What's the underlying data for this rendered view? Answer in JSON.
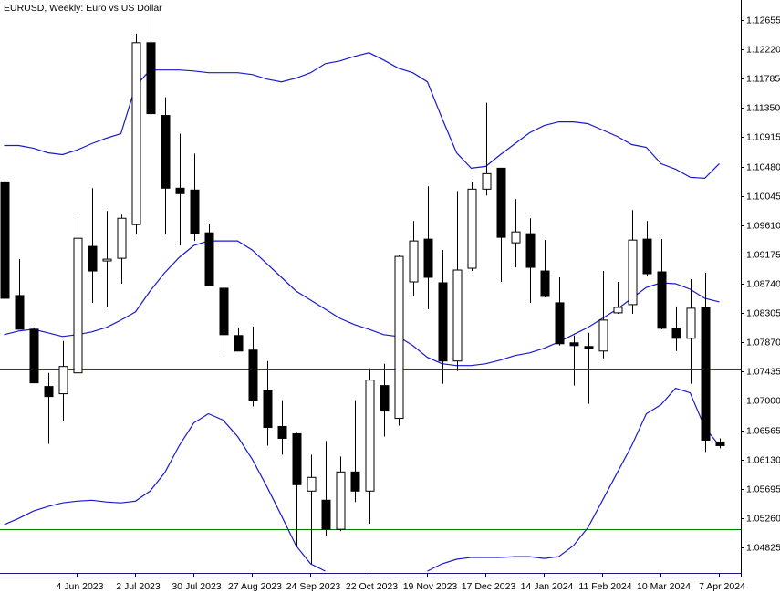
{
  "chart_data": {
    "type": "candlestick",
    "title": "EURUSD, Weekly:  Euro vs US Dollar",
    "categories": [
      null,
      null,
      null,
      null,
      null,
      "4 Jun 2023",
      null,
      null,
      null,
      "2 Jul 2023",
      null,
      null,
      null,
      "30 Jul 2023",
      null,
      null,
      null,
      "27 Aug 2023",
      null,
      null,
      null,
      "24 Sep 2023",
      null,
      null,
      null,
      "22 Oct 2023",
      null,
      null,
      null,
      "19 Nov 2023",
      null,
      null,
      null,
      "17 Dec 2023",
      null,
      null,
      null,
      "14 Jan 2024",
      null,
      null,
      null,
      "11 Feb 2024",
      null,
      null,
      null,
      "10 Mar 2024",
      null,
      null,
      null,
      "7 Apr 2024"
    ],
    "open": [
      1.10252,
      1.08565,
      1.08065,
      1.07215,
      1.07107,
      1.07417,
      1.09294,
      1.09078,
      1.09118,
      1.09618,
      1.12318,
      1.11238,
      1.10158,
      1.10131,
      1.09496,
      1.08673,
      1.07971,
      1.07755,
      1.07161,
      1.06621,
      1.06513,
      1.05662,
      1.05527,
      1.05095,
      1.05946,
      1.05662,
      1.07228,
      1.06742,
      1.08767,
      1.09402,
      1.08754,
      1.07593,
      1.0897,
      1.10144,
      1.10455,
      1.09348,
      1.09483,
      1.08929,
      1.08457,
      1.07863,
      1.07809,
      1.07741,
      1.08308,
      1.0843,
      1.09402,
      1.08916,
      1.08079,
      1.0793,
      1.08389,
      1.06391
    ],
    "high": [
      1.10252,
      1.09105,
      1.08092,
      1.07417,
      1.0789,
      1.09753,
      1.10158,
      1.0982,
      1.09766,
      1.12453,
      1.12817,
      1.11508,
      1.10968,
      1.10671,
      1.09618,
      1.08713,
      1.08092,
      1.08106,
      1.07593,
      1.07012,
      1.06526,
      1.06202,
      1.06405,
      1.06175,
      1.07012,
      1.07485,
      1.07552,
      1.09159,
      1.09672,
      1.10185,
      1.0924,
      1.10117,
      1.10252,
      1.11427,
      1.10455,
      1.09996,
      1.09712,
      1.09388,
      1.08835,
      1.07971,
      1.08011,
      1.08929,
      1.08767,
      1.09834,
      1.09672,
      1.09402,
      1.08403,
      1.08808,
      1.08902,
      1.06445
    ],
    "low": [
      1.08524,
      1.08065,
      1.07269,
      1.06364,
      1.06702,
      1.0735,
      1.08457,
      1.08389,
      1.0874,
      1.09469,
      1.11224,
      1.09469,
      1.09307,
      1.09375,
      1.08713,
      1.07687,
      1.07741,
      1.06918,
      1.06337,
      1.06202,
      1.04852,
      1.04582,
      1.04987,
      1.05068,
      1.055,
      1.05176,
      1.06472,
      1.06634,
      1.08565,
      1.08362,
      1.07255,
      1.07444,
      1.08929,
      1.1005,
      1.08767,
      1.08983,
      1.08457,
      1.08538,
      1.07822,
      1.07228,
      1.06958,
      1.07633,
      1.08294,
      1.08294,
      1.08862,
      1.08065,
      1.07741,
      1.07255,
      1.06243,
      1.06297
    ],
    "close": [
      1.08524,
      1.08065,
      1.07269,
      1.07066,
      1.07512,
      1.09415,
      1.08929,
      1.09105,
      1.09712,
      1.12318,
      1.11265,
      1.10158,
      1.10077,
      1.09483,
      1.08713,
      1.07984,
      1.07741,
      1.07012,
      1.06607,
      1.06445,
      1.05757,
      1.05865,
      1.05095,
      1.05946,
      1.05662,
      1.07309,
      1.0685,
      1.09145,
      1.09375,
      1.08835,
      1.07593,
      1.08943,
      1.10144,
      1.10374,
      1.09429,
      1.0951,
      1.08983,
      1.08551,
      1.07849,
      1.07822,
      1.07782,
      1.082,
      1.08389,
      1.09388,
      1.08889,
      1.08079,
      1.0793,
      1.08376,
      1.06418,
      1.06337
    ],
    "up_color": "#ffffff",
    "down_color": "#000000",
    "series": [
      {
        "type": "line",
        "color": "#1a1acc",
        "values": [
          1.10792,
          1.10792,
          1.10752,
          1.10684,
          1.10657,
          1.10725,
          1.10819,
          1.109,
          1.10968,
          1.1167,
          1.11913,
          1.11913,
          1.11913,
          1.11899,
          1.11872,
          1.11872,
          1.11872,
          1.11845,
          1.11778,
          1.11737,
          1.11791,
          1.11872,
          1.12007,
          1.12048,
          1.12115,
          1.12169,
          1.12061,
          1.1194,
          1.11872,
          1.11737,
          1.11197,
          1.10684,
          1.10455,
          1.10482,
          1.10657,
          1.10819,
          1.10981,
          1.11089,
          1.11143,
          1.11143,
          1.11116,
          1.11022,
          1.10927,
          1.10806,
          1.10765,
          1.10522,
          1.10441,
          1.1032,
          1.10306,
          1.10522
        ]
      },
      {
        "type": "line",
        "color": "#1a1acc",
        "values": [
          1.07984,
          1.08038,
          1.08065,
          1.08011,
          1.07957,
          1.07984,
          1.08025,
          1.08092,
          1.082,
          1.08322,
          1.08632,
          1.08902,
          1.09132,
          1.09307,
          1.09375,
          1.09375,
          1.09375,
          1.0924,
          1.09037,
          1.08835,
          1.08632,
          1.08497,
          1.08362,
          1.08227,
          1.08133,
          1.08065,
          1.07984,
          1.07957,
          1.07822,
          1.07647,
          1.07552,
          1.07525,
          1.07525,
          1.07552,
          1.07606,
          1.07674,
          1.07714,
          1.07782,
          1.07876,
          1.07984,
          1.08092,
          1.08227,
          1.08362,
          1.08524,
          1.08686,
          1.08754,
          1.0874,
          1.08659,
          1.08524,
          1.0847
        ]
      },
      {
        "type": "line",
        "color": "#1a1acc",
        "values": [
          1.05163,
          1.05257,
          1.05365,
          1.05433,
          1.05487,
          1.05513,
          1.05527,
          1.055,
          1.05487,
          1.05513,
          1.05662,
          1.05932,
          1.06337,
          1.06675,
          1.0681,
          1.06715,
          1.06472,
          1.06135,
          1.0573,
          1.05298,
          1.04852,
          1.04582,
          1.04474,
          null,
          null,
          null,
          null,
          null,
          null,
          1.04474,
          1.04582,
          1.0465,
          1.04677,
          1.04677,
          1.04677,
          1.0469,
          1.0469,
          1.04663,
          1.0469,
          1.04852,
          1.05122,
          1.05527,
          1.05932,
          1.06337,
          1.0681,
          1.06945,
          1.07188,
          1.0712,
          1.06607,
          1.06337
        ]
      }
    ],
    "hlines": [
      {
        "value": 1.07471,
        "color": "#c00000"
      },
      {
        "value": 1.05095,
        "color": "#008000"
      }
    ],
    "ylim": [
      1.04447,
      1.12952
    ],
    "yticks": [
      1.12655,
      {
        "value": 1.1222,
        "label": "1.12220"
      },
      1.11785,
      {
        "value": 1.1135,
        "label": "1.11350"
      },
      1.10915,
      {
        "value": 1.1048,
        "label": "1.10480"
      },
      1.10045,
      {
        "value": 1.0961,
        "label": "1.09610"
      },
      1.09175,
      {
        "value": 1.0874,
        "label": "1.08740"
      },
      1.08305,
      {
        "value": 1.0787,
        "label": "1.07870"
      },
      1.07435,
      {
        "value": 1.07,
        "label": "1.07000"
      },
      1.06565,
      {
        "value": 1.0613,
        "label": "1.06130"
      },
      1.05695,
      {
        "value": 1.0526,
        "label": "1.05260"
      },
      1.04825
    ]
  }
}
